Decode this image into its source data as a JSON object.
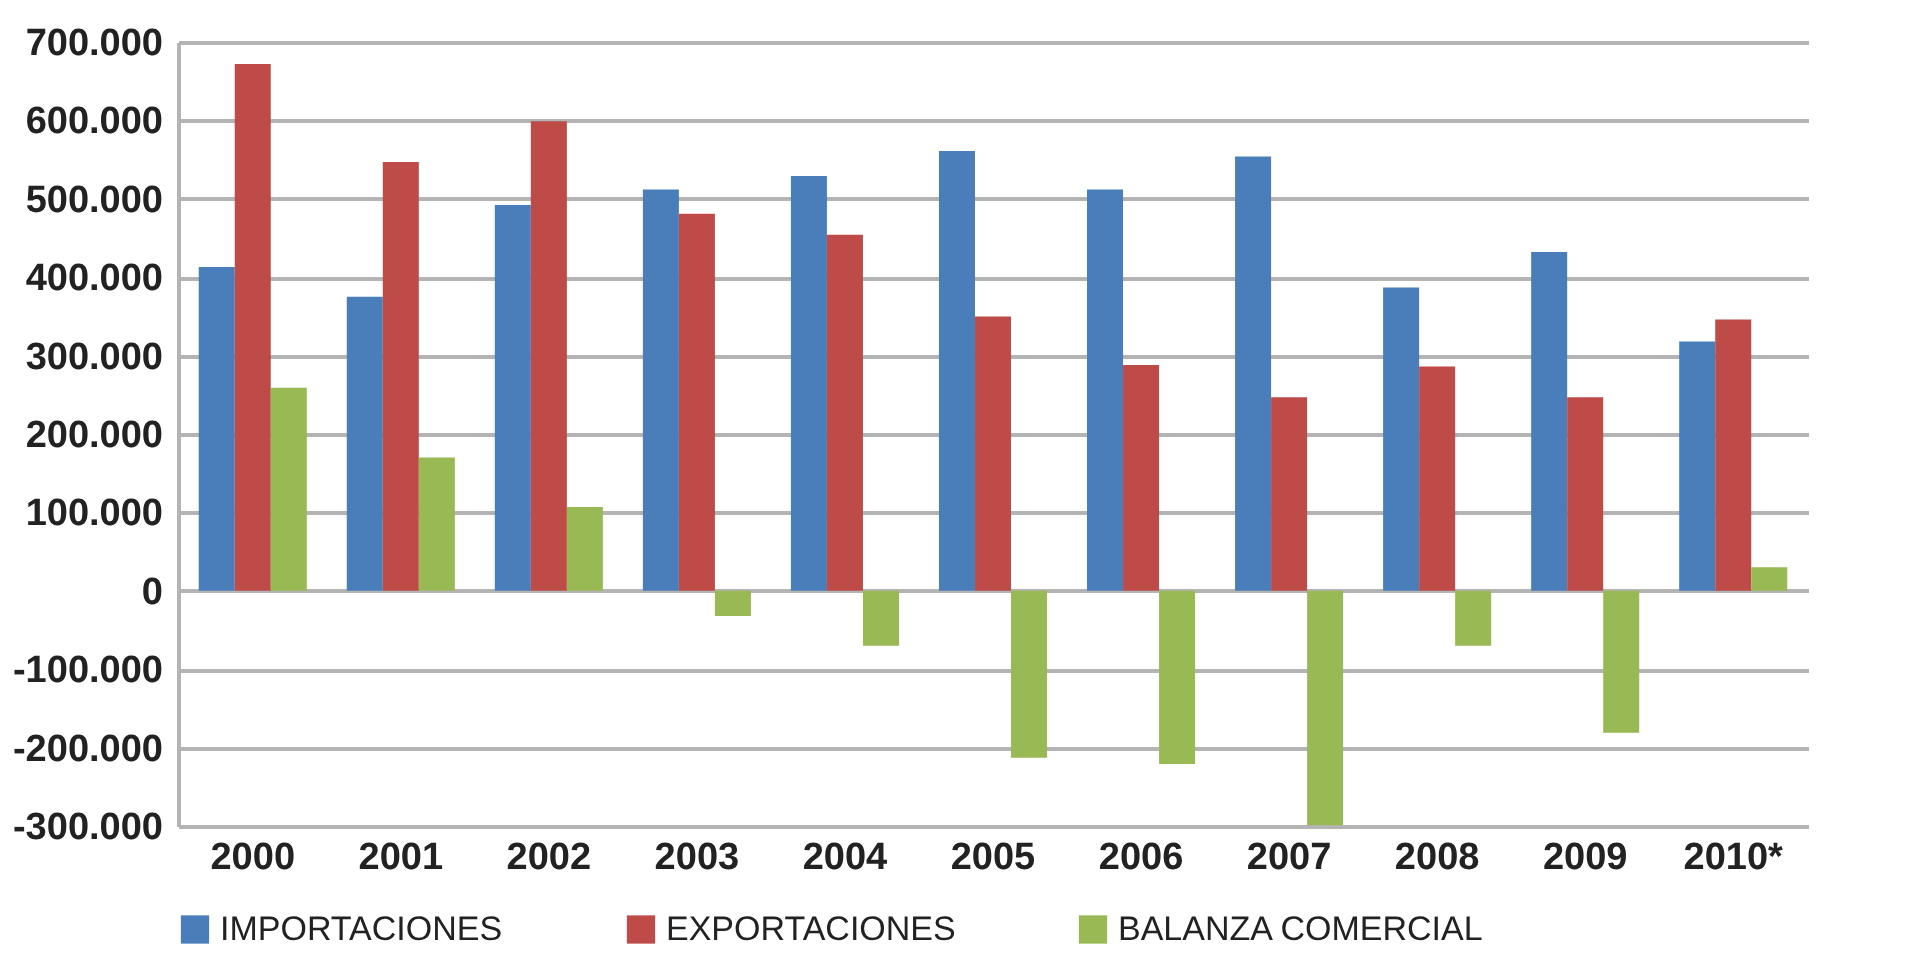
{
  "chart_data": {
    "type": "bar",
    "categories": [
      "2000",
      "2001",
      "2002",
      "2003",
      "2004",
      "2005",
      "2006",
      "2007",
      "2008",
      "2009",
      "2010*"
    ],
    "series": [
      {
        "name": "IMPORTACIONES",
        "color": "#4a7ebb",
        "values": [
          413000,
          375000,
          492000,
          512000,
          529000,
          561000,
          512000,
          554000,
          387000,
          432000,
          318000
        ]
      },
      {
        "name": "EXPORTACIONES",
        "color": "#be4b48",
        "values": [
          672000,
          547000,
          599000,
          481000,
          454000,
          350000,
          288000,
          247000,
          286000,
          247000,
          346000
        ]
      },
      {
        "name": "BALANZA COMERCIAL",
        "color": "#98b954",
        "values": [
          259000,
          170000,
          107000,
          -32000,
          -70000,
          -213000,
          -221000,
          -299000,
          -70000,
          -181000,
          30000
        ]
      }
    ],
    "ylim": [
      -300000,
      700000
    ],
    "yticks": [
      {
        "value": -300000,
        "label": "-300.000"
      },
      {
        "value": -200000,
        "label": "-200.000"
      },
      {
        "value": -100000,
        "label": "-100.000"
      },
      {
        "value": 0,
        "label": "0"
      },
      {
        "value": 100000,
        "label": "100.000"
      },
      {
        "value": 200000,
        "label": "200.000"
      },
      {
        "value": 300000,
        "label": "300.000"
      },
      {
        "value": 400000,
        "label": "400.000"
      },
      {
        "value": 500000,
        "label": "500.000"
      },
      {
        "value": 600000,
        "label": "600.000"
      },
      {
        "value": 700000,
        "label": "700.000"
      }
    ],
    "grid": "y",
    "legend": "bottom"
  }
}
